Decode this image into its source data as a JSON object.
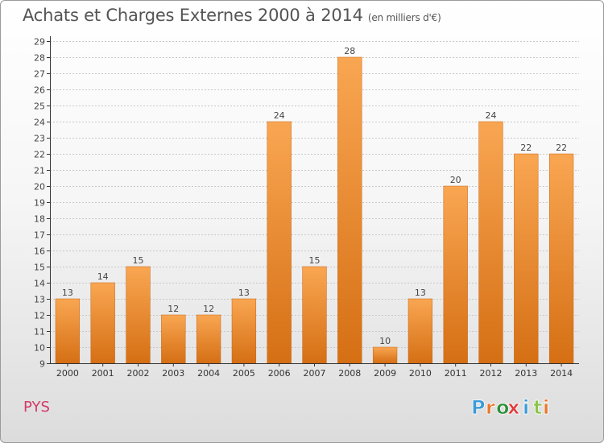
{
  "header": {
    "title": "Achats et Charges Externes 2000 à 2014",
    "unit": "(en milliers d'€)"
  },
  "commune": "PYS",
  "logo": {
    "text": "Proxiti",
    "colors": [
      "#3a9bd8",
      "#e8762a",
      "#2f8f3a",
      "#e03a3a",
      "#3a9bd8",
      "#8bc34a",
      "#e8762a"
    ]
  },
  "colors": {
    "bar_light": "#f9a652",
    "bar_dark": "#d56f14",
    "grid": "#c8c8c8",
    "axis": "#333333"
  },
  "chart_data": {
    "type": "bar",
    "title": "Achats et Charges Externes 2000 à 2014",
    "subtitle": "(en milliers d'€)",
    "categories": [
      "2000",
      "2001",
      "2002",
      "2003",
      "2004",
      "2005",
      "2006",
      "2007",
      "2008",
      "2009",
      "2010",
      "2011",
      "2012",
      "2013",
      "2014"
    ],
    "values": [
      13,
      14,
      15,
      12,
      12,
      13,
      24,
      15,
      28,
      10,
      13,
      20,
      24,
      22,
      22
    ],
    "ylim": [
      9,
      29
    ],
    "yticks": [
      9,
      10,
      11,
      12,
      13,
      14,
      15,
      16,
      17,
      18,
      19,
      20,
      21,
      22,
      23,
      24,
      25,
      26,
      27,
      28,
      29
    ],
    "grid": true,
    "data_labels": true
  }
}
